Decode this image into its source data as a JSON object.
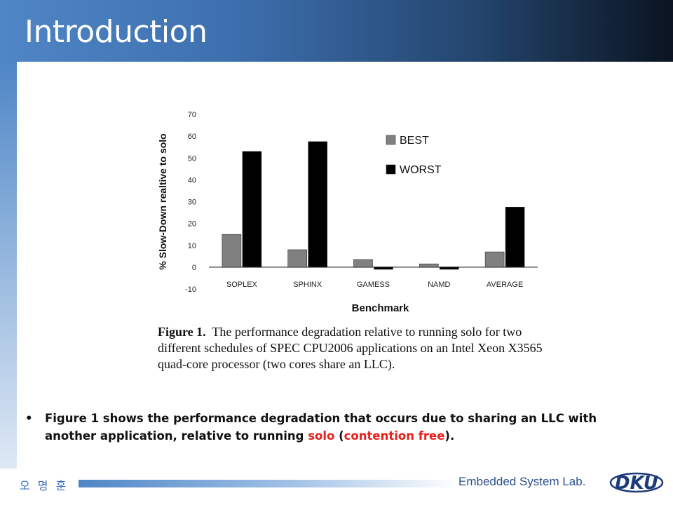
{
  "slide": {
    "title": "Introduction"
  },
  "figure": {
    "caption_label": "Figure 1.",
    "caption_text": "The performance degradation relative to running solo for two different schedules of SPEC CPU2006 applications on an Intel Xeon X3565 quad-core processor (two cores share an LLC)."
  },
  "chart_data": {
    "type": "bar",
    "title": "",
    "xlabel": "Benchmark",
    "ylabel": "% Slow-Down realtive to solo",
    "ylim": [
      -10,
      70
    ],
    "yticks": [
      -10,
      0,
      10,
      20,
      30,
      40,
      50,
      60,
      70
    ],
    "categories": [
      "SOPLEX",
      "SPHINX",
      "GAMESS",
      "NAMD",
      "AVERAGE"
    ],
    "series": [
      {
        "name": "BEST",
        "color": "#808080",
        "values": [
          15,
          8,
          3.5,
          1.5,
          7
        ]
      },
      {
        "name": "WORST",
        "color": "#000000",
        "values": [
          53,
          57.5,
          -1,
          -1,
          27.5
        ]
      }
    ],
    "legend_position": "top-right",
    "grid": false
  },
  "bullet": {
    "text_before": "Figure 1 shows the performance degradation that occurs due to sharing an LLC with another application, relative to running ",
    "solo": "solo",
    "paren_open": " (",
    "contention": "contention free",
    "paren_close": ")."
  },
  "footer": {
    "author": "오 명 훈",
    "lab": "Embedded System Lab.",
    "logo_text": "DKU"
  },
  "colors": {
    "title_bar_start": "#4f86c6",
    "title_bar_end": "#0b1420",
    "highlight": "#e8201b",
    "footer_text": "#2b4f8c"
  }
}
